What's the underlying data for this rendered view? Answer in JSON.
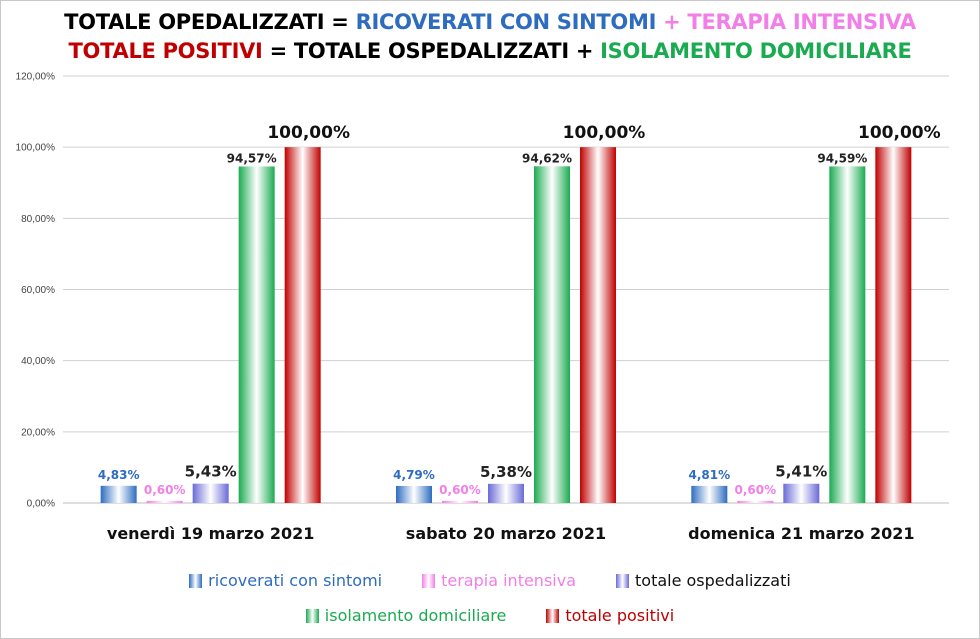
{
  "title": {
    "line1": [
      {
        "text": "TOTALE OPEDALIZZATI = ",
        "color": "#000000"
      },
      {
        "text": "RICOVERATI CON SINTOMI",
        "color": "#2e6cc0"
      },
      {
        "text": " + TERAPIA INTENSIVA",
        "color": "#f27ee8"
      }
    ],
    "line2": [
      {
        "text": "TOTALE POSITIVI",
        "color": "#c00000"
      },
      {
        "text": " = TOTALE OSPEDALIZZATI + ",
        "color": "#000000"
      },
      {
        "text": "ISOLAMENTO DOMICILIARE",
        "color": "#1aab50"
      }
    ]
  },
  "chart_data": {
    "type": "bar",
    "categories": [
      "venerdì 19 marzo 2021",
      "sabato 20 marzo 2021",
      "domenica 21 marzo 2021"
    ],
    "ylim": [
      0,
      120
    ],
    "yticks": [
      "0,00%",
      "20,00%",
      "40,00%",
      "60,00%",
      "80,00%",
      "100,00%",
      "120,00%"
    ],
    "grid": true,
    "legend_position": "bottom",
    "series": [
      {
        "name": "ricoverati con sintomi",
        "values": [
          4.83,
          4.79,
          4.81
        ],
        "labels": [
          "4,83%",
          "4,79%",
          "4,81%"
        ],
        "color": "#2e6cc0",
        "label_color": "#2e6cc0"
      },
      {
        "name": "terapia intensiva",
        "values": [
          0.6,
          0.6,
          0.6
        ],
        "labels": [
          "0,60%",
          "0,60%",
          "0,60%"
        ],
        "color": "#f27ee8",
        "label_color": "#f27ee8"
      },
      {
        "name": "totale ospedalizzati",
        "values": [
          5.43,
          5.38,
          5.41
        ],
        "labels": [
          "5,43%",
          "5,38%",
          "5,41%"
        ],
        "color": "#6a6ad8",
        "label_color": "#222222"
      },
      {
        "name": "isolamento domiciliare",
        "values": [
          94.57,
          94.62,
          94.59
        ],
        "labels": [
          "94,57%",
          "94,62%",
          "94,59%"
        ],
        "color": "#1aab50",
        "label_color": "#222222"
      },
      {
        "name": "totale positivi",
        "values": [
          100,
          100,
          100
        ],
        "labels": [
          "100,00%",
          "100,00%",
          "100,00%"
        ],
        "color": "#c00000",
        "label_color": "#111111"
      }
    ]
  }
}
